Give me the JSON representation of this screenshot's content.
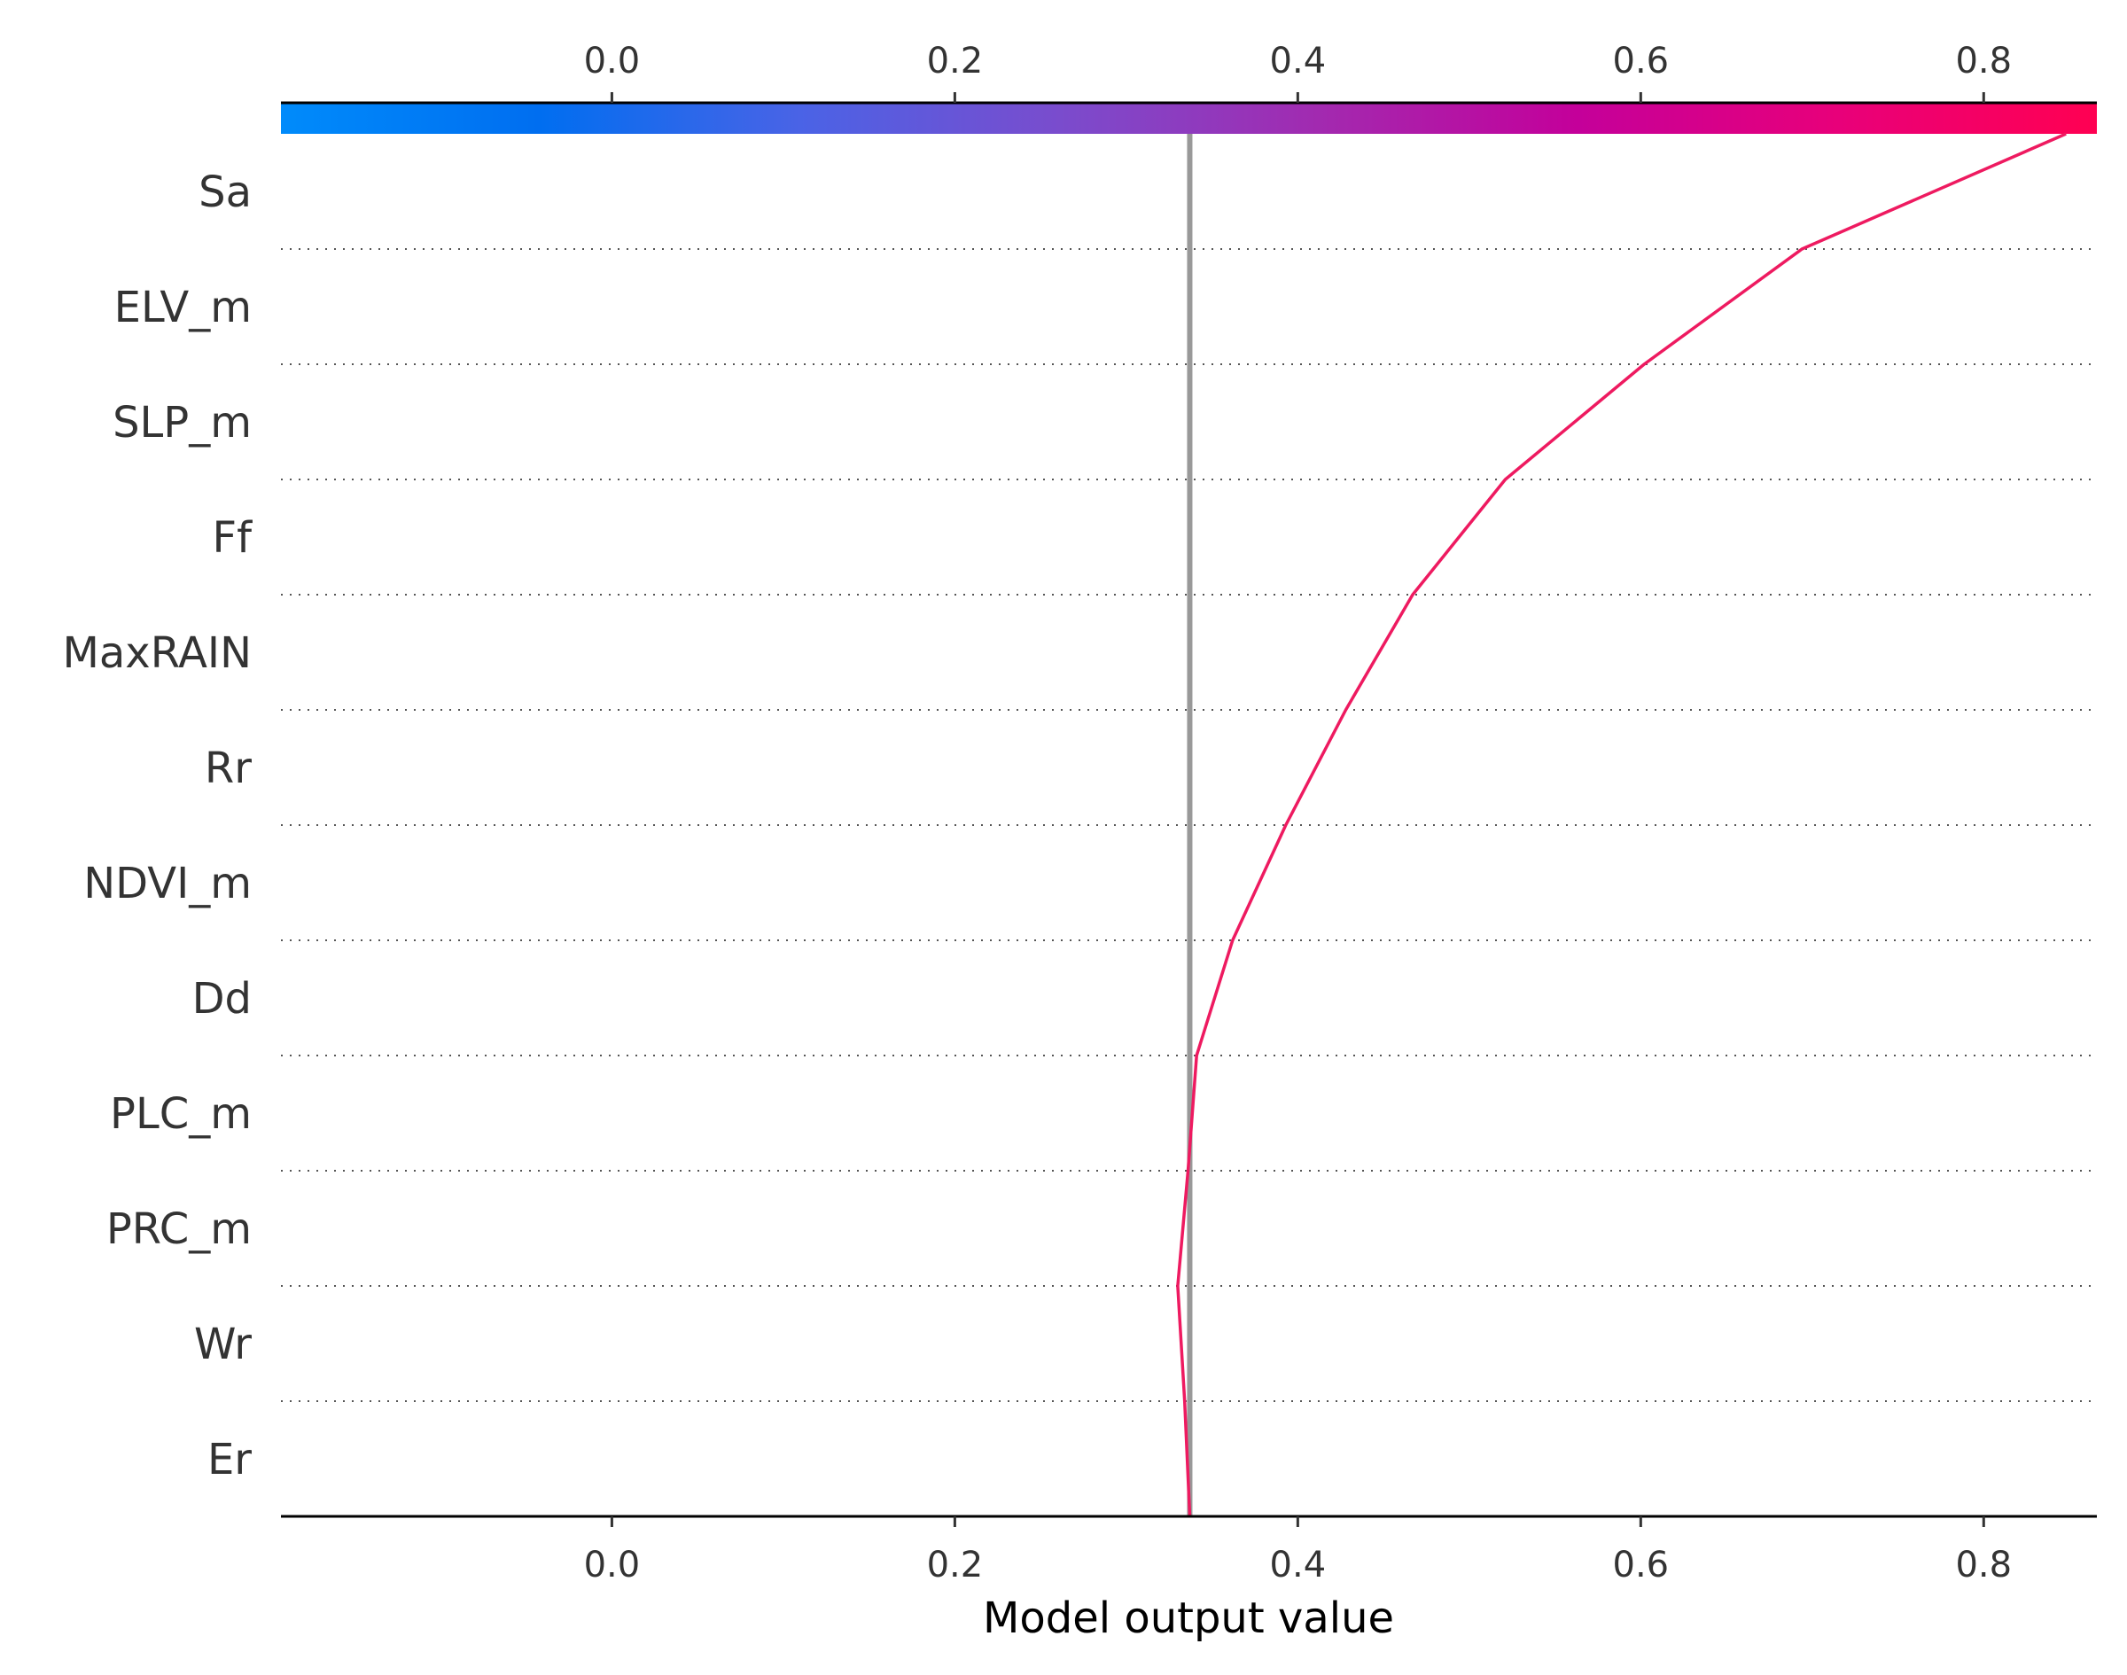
{
  "chart_data": {
    "type": "line",
    "subtype": "shap-decision-plot",
    "xlabel": "Model output value",
    "xlim": [
      -0.193,
      0.866
    ],
    "x_ticks": [
      "0.0",
      "0.2",
      "0.4",
      "0.6",
      "0.8"
    ],
    "x_tick_values": [
      0.0,
      0.2,
      0.4,
      0.6,
      0.8
    ],
    "base_value": 0.337,
    "features": [
      "Sa",
      "ELV_m",
      "SLP_m",
      "Ff",
      "MaxRAIN",
      "Rr",
      "NDVI_m",
      "Dd",
      "PLC_m",
      "PRC_m",
      "Wr",
      "Er"
    ],
    "series": [
      {
        "values_bottom_to_top": [
          0.337,
          0.334,
          0.33,
          0.336,
          0.341,
          0.362,
          0.393,
          0.428,
          0.467,
          0.521,
          0.602,
          0.694,
          0.848
        ]
      }
    ],
    "colorbar": {
      "range": [
        -0.193,
        0.866
      ],
      "colors": [
        "#008bfb",
        "#006ef0",
        "#4a63e6",
        "#7a4ccd",
        "#a22ab0",
        "#c4009a",
        "#e8007a",
        "#ff0052"
      ]
    },
    "colors": {
      "line": "#ee1a60",
      "base_line": "#999999"
    }
  }
}
